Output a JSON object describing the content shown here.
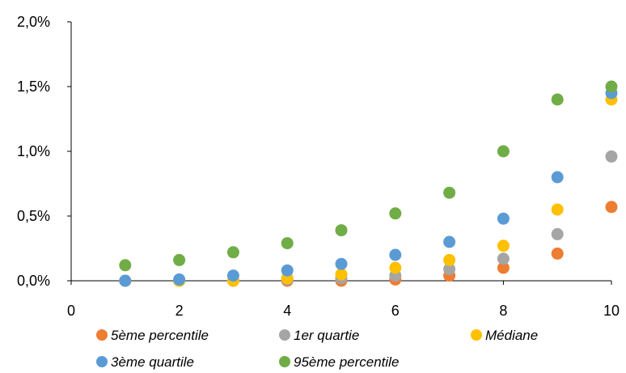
{
  "chart_data": {
    "type": "scatter",
    "title": "",
    "xlabel": "",
    "ylabel": "",
    "xlim": [
      0,
      10
    ],
    "ylim": [
      0,
      0.02
    ],
    "x_ticks": [
      0,
      2,
      4,
      6,
      8,
      10
    ],
    "x_tick_labels": [
      "0",
      "2",
      "4",
      "6",
      "8",
      "10"
    ],
    "y_ticks": [
      0,
      0.005,
      0.01,
      0.015,
      0.02
    ],
    "y_tick_labels": [
      "0,0%",
      "0,5%",
      "1,0%",
      "1,5%",
      "2,0%"
    ],
    "grid": false,
    "legend_position": "bottom",
    "x": [
      1,
      2,
      3,
      4,
      5,
      6,
      7,
      8,
      9,
      10
    ],
    "series": [
      {
        "name": "5ème percentile",
        "color": "#ED7D31",
        "values": [
          0.0,
          0.0,
          0.0,
          0.0,
          0.0,
          0.0001,
          0.0004,
          0.001,
          0.0021,
          0.0057
        ]
      },
      {
        "name": "1er quartie",
        "color": "#A5A5A5",
        "values": [
          0.0,
          0.0,
          0.0,
          0.0001,
          0.0002,
          0.0004,
          0.0009,
          0.0017,
          0.0036,
          0.0096
        ]
      },
      {
        "name": "Médiane",
        "color": "#FFC000",
        "values": [
          0.0,
          0.0,
          0.0,
          0.0002,
          0.0005,
          0.001,
          0.0016,
          0.0027,
          0.0055,
          0.014
        ]
      },
      {
        "name": "3ème quartile",
        "color": "#5B9BD5",
        "values": [
          0.0,
          0.0001,
          0.0004,
          0.0008,
          0.0013,
          0.002,
          0.003,
          0.0048,
          0.008,
          0.0145
        ]
      },
      {
        "name": "95ème percentile",
        "color": "#70AD47",
        "values": [
          0.0012,
          0.0016,
          0.0022,
          0.0029,
          0.0039,
          0.0052,
          0.0068,
          0.01,
          0.014,
          0.015
        ]
      }
    ]
  }
}
